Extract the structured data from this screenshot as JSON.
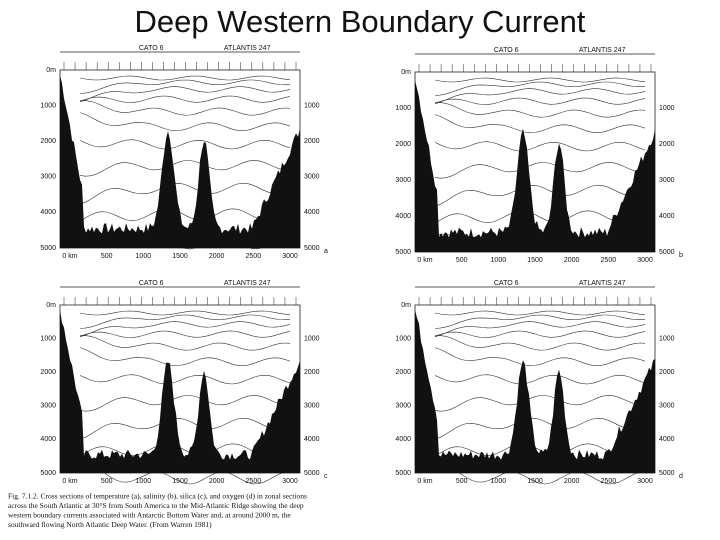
{
  "title": "Deep Western Boundary Current",
  "panels": [
    {
      "letter": "a",
      "header_left": "CATO 6",
      "header_right": "ATLANTIS 247",
      "depth_labels": [
        "0m",
        "1000",
        "2000",
        "3000",
        "4000",
        "5000"
      ],
      "depth_labels_right": [
        "1000",
        "2000",
        "3000",
        "4000",
        "5000"
      ],
      "distance_labels": [
        "0 km",
        "500",
        "1000",
        "1500",
        "2000",
        "2500",
        "3000"
      ]
    },
    {
      "letter": "b",
      "header_left": "CATO 6",
      "header_right": "ATLANTIS 247",
      "depth_labels": [
        "0m",
        "1000",
        "2000",
        "3000",
        "4000",
        "5000"
      ],
      "depth_labels_right": [
        "1000",
        "2000",
        "3000",
        "4000",
        "5000"
      ],
      "distance_labels": [
        "0 km",
        "500",
        "1000",
        "1500",
        "2000",
        "2500",
        "3000"
      ]
    },
    {
      "letter": "c",
      "header_left": "CATO 6",
      "header_right": "ATLANTIS 247",
      "depth_labels": [
        "0m",
        "1000",
        "2000",
        "3000",
        "4000",
        "5000"
      ],
      "depth_labels_right": [
        "1000",
        "2000",
        "3000",
        "4000",
        "5000"
      ],
      "distance_labels": [
        "0 km",
        "500",
        "1000",
        "1500",
        "2000",
        "2500",
        "3000"
      ]
    },
    {
      "letter": "d",
      "header_left": "CATO 6",
      "header_right": "ATLANTIS 247",
      "depth_labels": [
        "0m",
        "1000",
        "2000",
        "3000",
        "4000",
        "5000"
      ],
      "depth_labels_right": [
        "1000",
        "2000",
        "3000",
        "4000",
        "5000"
      ],
      "distance_labels": [
        "0 km",
        "500",
        "1000",
        "1500",
        "2000",
        "2500",
        "3000"
      ]
    }
  ],
  "caption": [
    "Fig. 7.1.2. Cross sections of temperature (a), salinity (b), silica (c), and oxygen (d) in zonal sections",
    "across the South Atlantic at 30°S from South America to the Mid-Atlantic Ridge showing the deep",
    "western boundary currents associated with Antarctic Bottom Water and, at around 2000 m, the",
    "southward flowing North Atlantic Deep Water. (From Warren 1981)"
  ]
}
